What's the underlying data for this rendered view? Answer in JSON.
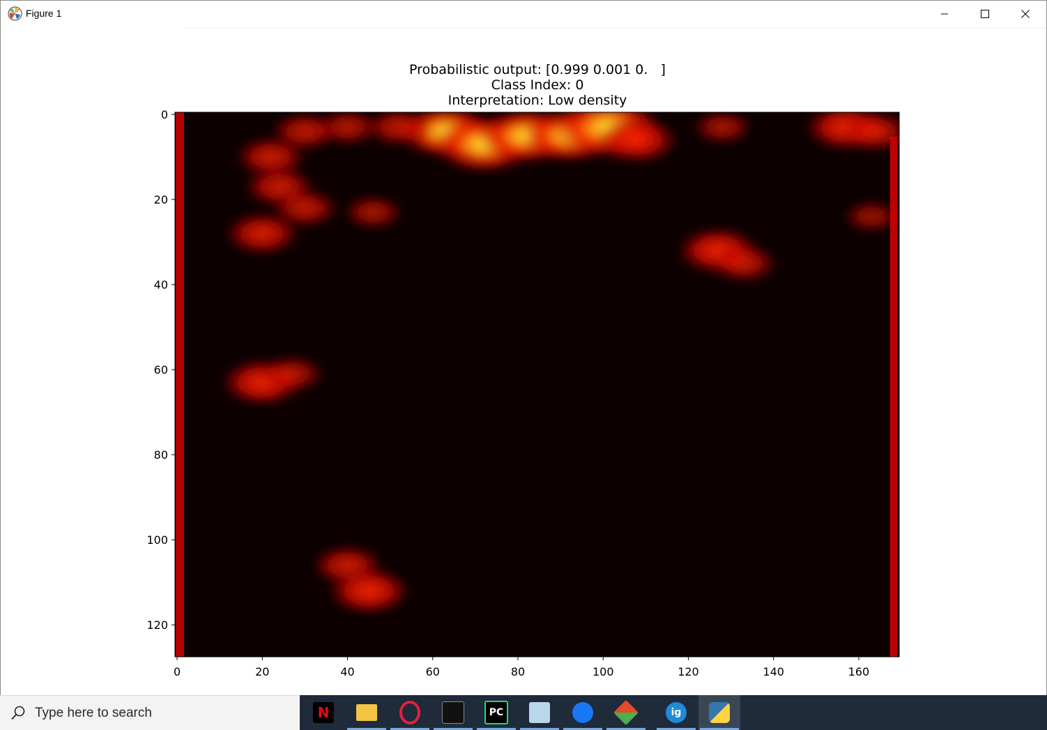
{
  "window": {
    "title": "Figure 1"
  },
  "figure": {
    "title_lines": [
      "Probabilistic output: [0.999 0.001 0.   ]",
      "Class Index: 0",
      "Interpretation: Low density"
    ]
  },
  "chart_data": {
    "type": "heatmap",
    "title": "Probabilistic output: [0.999 0.001 0.   ]\nClass Index: 0\nInterpretation: Low density",
    "xlabel": "",
    "ylabel": "",
    "x_ticks": [
      "0",
      "20",
      "40",
      "60",
      "80",
      "100",
      "120",
      "140",
      "160"
    ],
    "y_ticks": [
      "0",
      "20",
      "40",
      "60",
      "80",
      "100",
      "120"
    ],
    "xlim": [
      -0.5,
      169.5
    ],
    "ylim": [
      127.5,
      -0.5
    ],
    "colormap": "hot",
    "grid": false,
    "background_color": "#0d0000",
    "hotspots": [
      {
        "x": 63,
        "y": 4,
        "intensity": 0.75
      },
      {
        "x": 72,
        "y": 7,
        "intensity": 0.85
      },
      {
        "x": 82,
        "y": 5,
        "intensity": 0.8
      },
      {
        "x": 92,
        "y": 5,
        "intensity": 0.75
      },
      {
        "x": 101,
        "y": 3,
        "intensity": 0.95
      },
      {
        "x": 108,
        "y": 6,
        "intensity": 0.6
      },
      {
        "x": 52,
        "y": 3,
        "intensity": 0.4
      },
      {
        "x": 40,
        "y": 3,
        "intensity": 0.35
      },
      {
        "x": 30,
        "y": 4,
        "intensity": 0.4
      },
      {
        "x": 22,
        "y": 10,
        "intensity": 0.45
      },
      {
        "x": 24,
        "y": 17,
        "intensity": 0.45
      },
      {
        "x": 30,
        "y": 22,
        "intensity": 0.4
      },
      {
        "x": 20,
        "y": 28,
        "intensity": 0.5
      },
      {
        "x": 46,
        "y": 23,
        "intensity": 0.3
      },
      {
        "x": 128,
        "y": 3,
        "intensity": 0.3
      },
      {
        "x": 157,
        "y": 3,
        "intensity": 0.6
      },
      {
        "x": 164,
        "y": 4,
        "intensity": 0.45
      },
      {
        "x": 163,
        "y": 24,
        "intensity": 0.25
      },
      {
        "x": 127,
        "y": 32,
        "intensity": 0.6
      },
      {
        "x": 133,
        "y": 35,
        "intensity": 0.4
      },
      {
        "x": 20,
        "y": 63,
        "intensity": 0.6
      },
      {
        "x": 27,
        "y": 61,
        "intensity": 0.35
      },
      {
        "x": 40,
        "y": 106,
        "intensity": 0.45
      },
      {
        "x": 45,
        "y": 112,
        "intensity": 0.6
      }
    ]
  },
  "taskbar": {
    "search_placeholder": "Type here to search",
    "apps": [
      {
        "icon": "netflix-icon",
        "letter": "N",
        "color": "#e50914"
      },
      {
        "icon": "file-explorer-icon",
        "color": "#f4c542"
      },
      {
        "icon": "opera-icon",
        "color": "#e0213a"
      },
      {
        "icon": "terminal-icon",
        "color": "#111111"
      },
      {
        "icon": "pycharm-icon",
        "letter": "PC",
        "color": "#21d789"
      },
      {
        "icon": "notes-icon",
        "color": "#b9d7ea"
      },
      {
        "icon": "maps-icon",
        "color": "#1877f2"
      },
      {
        "icon": "git-icon",
        "color": "#e34c26"
      },
      {
        "icon": "ig-icon",
        "letter": "ig",
        "color": "#1f8ad6"
      },
      {
        "icon": "python-icon",
        "color": "#3776ab"
      }
    ]
  }
}
